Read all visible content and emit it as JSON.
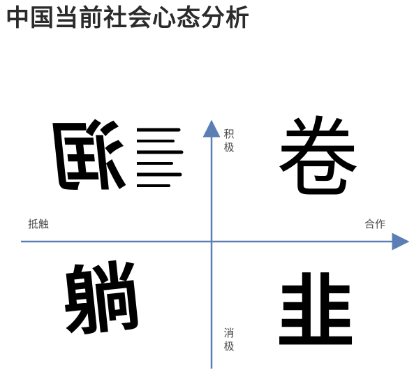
{
  "title": "中国当前社会心态分析",
  "axes": {
    "top_label": "积极",
    "bottom_label": "消极",
    "left_label": "抵触",
    "right_label": "合作",
    "color": "#5b7fb5"
  },
  "quadrants": {
    "top_left": "润",
    "top_right": "卷",
    "bottom_left": "躺",
    "bottom_right": "韭"
  }
}
